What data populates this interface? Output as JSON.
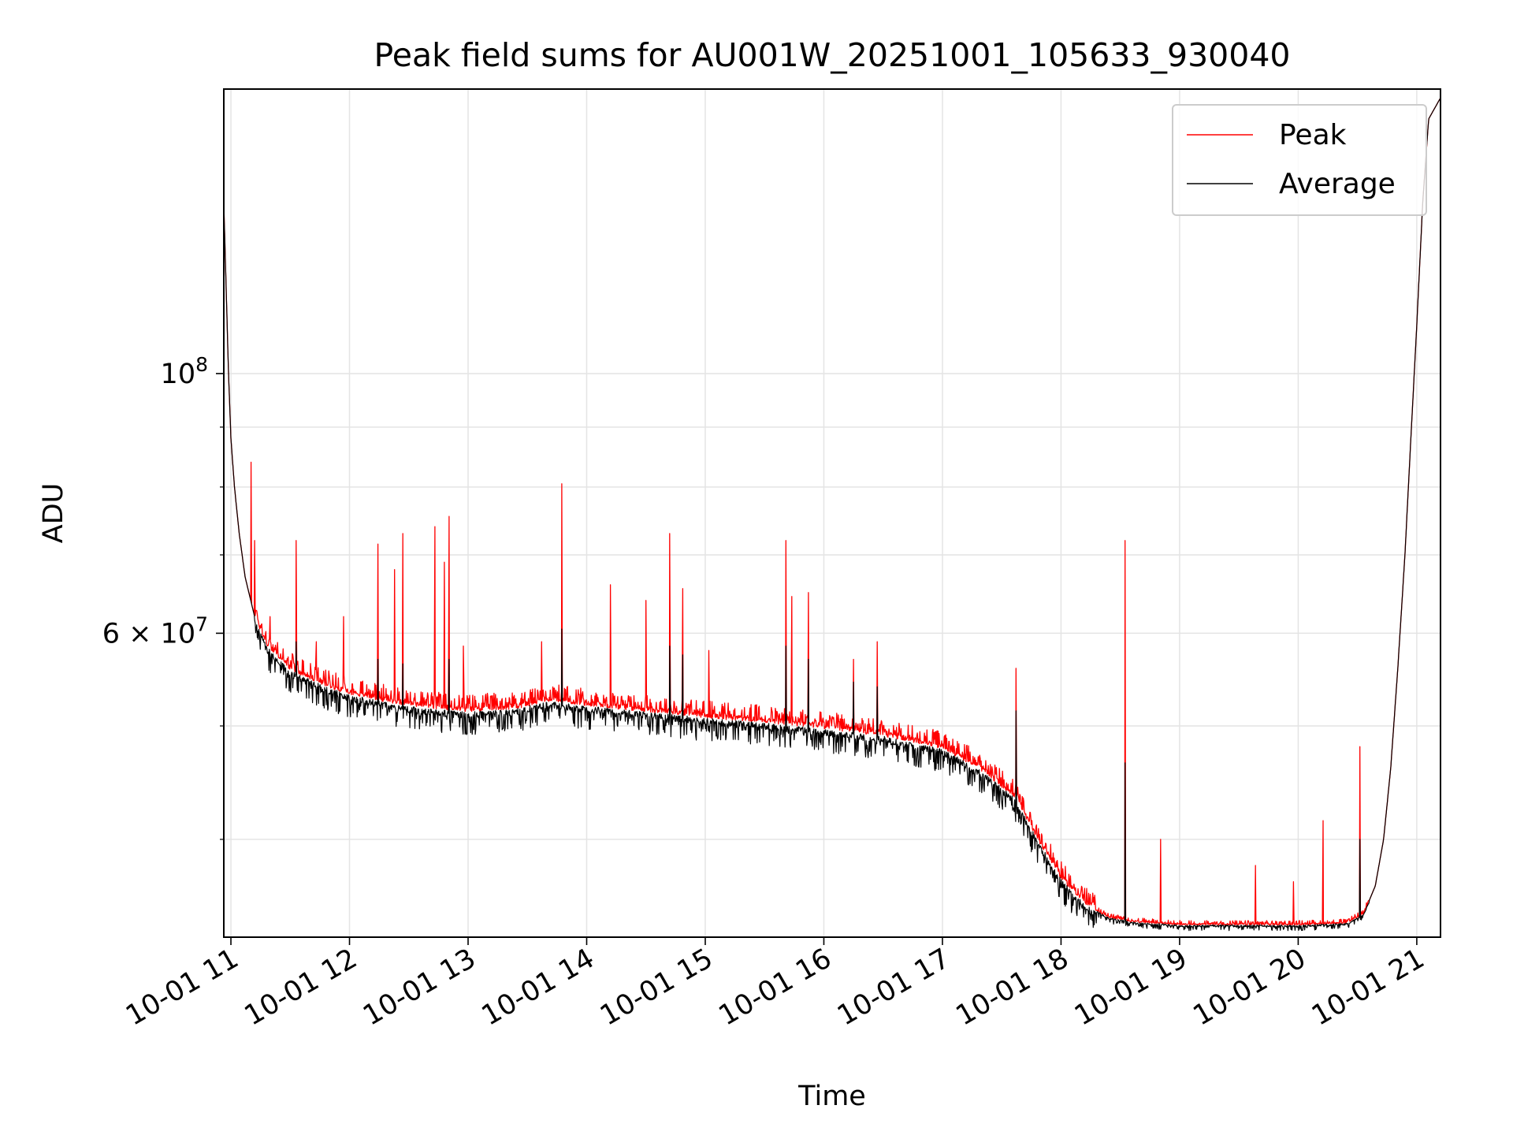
{
  "chart_data": {
    "type": "line",
    "title": "Peak field sums for AU001W_20251001_105633_930040",
    "xlabel": "Time",
    "ylabel": "ADU",
    "yscale": "log",
    "grid": true,
    "legend_position": "top-right",
    "xlim": [
      10.94,
      21.2
    ],
    "ylim": [
      33000000,
      175000000
    ],
    "x_ticks": [
      {
        "value": 11,
        "label": "10-01 11"
      },
      {
        "value": 12,
        "label": "10-01 12"
      },
      {
        "value": 13,
        "label": "10-01 13"
      },
      {
        "value": 14,
        "label": "10-01 14"
      },
      {
        "value": 15,
        "label": "10-01 15"
      },
      {
        "value": 16,
        "label": "10-01 16"
      },
      {
        "value": 17,
        "label": "10-01 17"
      },
      {
        "value": 18,
        "label": "10-01 18"
      },
      {
        "value": 19,
        "label": "10-01 19"
      },
      {
        "value": 20,
        "label": "10-01 20"
      },
      {
        "value": 21,
        "label": "10-01 21"
      }
    ],
    "y_major_ticks": [
      {
        "value": 100000000,
        "base": "10",
        "exp": "8"
      },
      {
        "value": 60000000,
        "mantissa": "6",
        "base": "10",
        "exp": "7"
      }
    ],
    "y_minor_ticks": [
      40000000,
      50000000,
      70000000,
      80000000,
      90000000
    ],
    "baseline": [
      [
        10.94,
        140000000
      ],
      [
        10.96,
        118000000
      ],
      [
        10.98,
        100000000
      ],
      [
        11.0,
        88000000
      ],
      [
        11.03,
        80000000
      ],
      [
        11.07,
        73000000
      ],
      [
        11.12,
        67000000
      ],
      [
        11.2,
        62000000
      ],
      [
        11.3,
        58500000
      ],
      [
        11.5,
        55800000
      ],
      [
        11.8,
        54000000
      ],
      [
        12.0,
        53200000
      ],
      [
        12.3,
        52400000
      ],
      [
        12.6,
        51800000
      ],
      [
        13.0,
        51400000
      ],
      [
        13.4,
        51700000
      ],
      [
        13.7,
        52500000
      ],
      [
        14.0,
        52000000
      ],
      [
        14.5,
        51400000
      ],
      [
        15.0,
        50800000
      ],
      [
        15.5,
        50300000
      ],
      [
        16.0,
        49700000
      ],
      [
        16.5,
        49000000
      ],
      [
        17.0,
        47800000
      ],
      [
        17.3,
        46000000
      ],
      [
        17.6,
        43500000
      ],
      [
        17.8,
        40000000
      ],
      [
        18.0,
        37000000
      ],
      [
        18.2,
        35200000
      ],
      [
        18.4,
        34300000
      ],
      [
        18.6,
        34000000
      ],
      [
        19.0,
        33800000
      ],
      [
        19.5,
        33800000
      ],
      [
        20.0,
        33800000
      ],
      [
        20.4,
        33900000
      ],
      [
        20.55,
        34500000
      ],
      [
        20.65,
        36500000
      ],
      [
        20.72,
        40000000
      ],
      [
        20.78,
        46000000
      ],
      [
        20.84,
        56000000
      ],
      [
        20.9,
        70000000
      ],
      [
        20.95,
        88000000
      ],
      [
        21.0,
        110000000
      ],
      [
        21.05,
        140000000
      ],
      [
        21.1,
        165000000
      ],
      [
        21.2,
        172000000
      ]
    ],
    "series": [
      {
        "name": "Peak",
        "color": "#ff0000",
        "noise_above": 0.035,
        "spikes": [
          [
            11.17,
            84000000
          ],
          [
            11.2,
            72000000
          ],
          [
            11.33,
            62000000
          ],
          [
            11.55,
            72000000
          ],
          [
            11.72,
            59000000
          ],
          [
            11.95,
            62000000
          ],
          [
            12.24,
            71500000
          ],
          [
            12.38,
            68000000
          ],
          [
            12.45,
            73000000
          ],
          [
            12.72,
            74000000
          ],
          [
            12.8,
            69000000
          ],
          [
            12.84,
            75500000
          ],
          [
            12.96,
            58500000
          ],
          [
            13.62,
            59000000
          ],
          [
            13.79,
            80500000
          ],
          [
            14.2,
            66000000
          ],
          [
            14.5,
            64000000
          ],
          [
            14.7,
            73000000
          ],
          [
            14.81,
            65500000
          ],
          [
            15.03,
            58000000
          ],
          [
            15.68,
            72000000
          ],
          [
            15.73,
            64500000
          ],
          [
            15.87,
            65000000
          ],
          [
            16.25,
            57000000
          ],
          [
            16.45,
            59000000
          ],
          [
            17.62,
            56000000
          ],
          [
            18.54,
            72000000
          ],
          [
            18.84,
            40000000
          ],
          [
            19.64,
            38000000
          ],
          [
            19.96,
            36800000
          ],
          [
            20.21,
            41500000
          ],
          [
            20.52,
            48000000
          ]
        ]
      },
      {
        "name": "Average",
        "color": "#000000",
        "noise_below": 0.045,
        "spikes": [
          [
            11.55,
            59000000
          ],
          [
            12.24,
            57000000
          ],
          [
            12.45,
            56500000
          ],
          [
            12.84,
            57000000
          ],
          [
            13.79,
            60500000
          ],
          [
            14.7,
            58500000
          ],
          [
            14.81,
            57500000
          ],
          [
            15.68,
            58500000
          ],
          [
            15.87,
            57000000
          ],
          [
            16.25,
            54500000
          ],
          [
            16.45,
            54000000
          ],
          [
            17.62,
            51500000
          ],
          [
            18.54,
            46500000
          ],
          [
            20.52,
            40000000
          ]
        ]
      }
    ]
  }
}
